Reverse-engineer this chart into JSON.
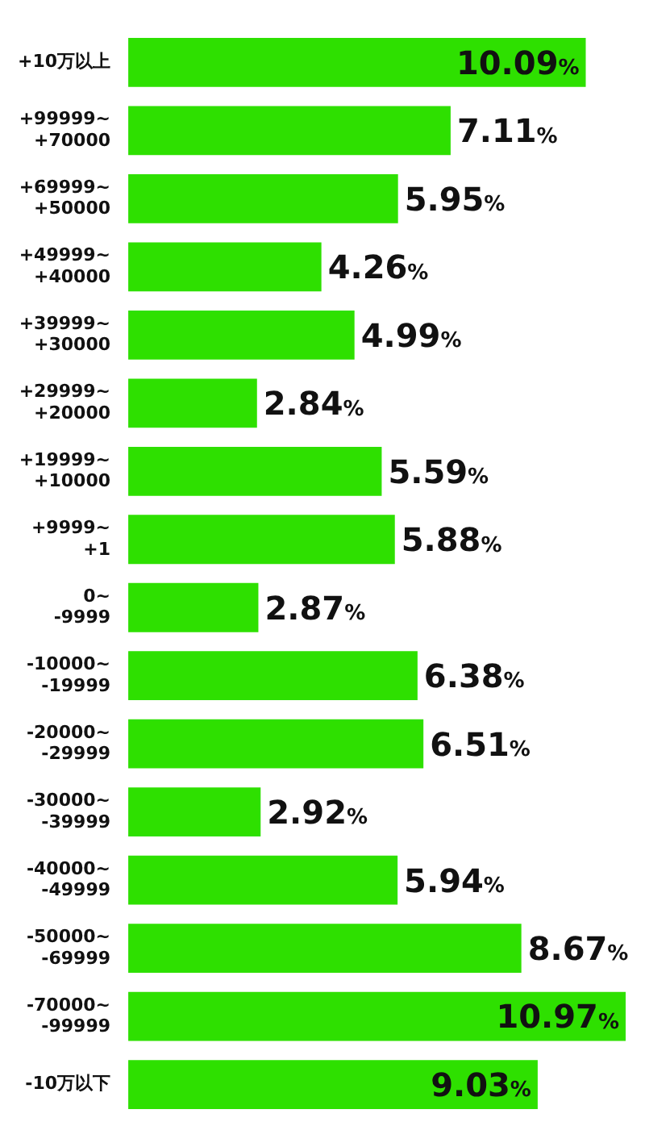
{
  "chart_data": {
    "type": "bar",
    "orientation": "horizontal",
    "color": "#2ee000",
    "categories": [
      "+10万以上",
      "+99999~+70000",
      "+69999~+50000",
      "+49999~+40000",
      "+39999~+30000",
      "+29999~+20000",
      "+19999~+10000",
      "+9999~+1",
      "0~-9999",
      "-10000~-19999",
      "-20000~-29999",
      "-30000~-39999",
      "-40000~-49999",
      "-50000~-69999",
      "-70000~-99999",
      "-10万以下"
    ],
    "values": [
      10.09,
      7.11,
      5.95,
      4.26,
      4.99,
      2.84,
      5.59,
      5.88,
      2.87,
      6.38,
      6.51,
      2.92,
      5.94,
      8.67,
      10.97,
      9.03
    ],
    "value_labels": [
      "10.09%",
      "7.11%",
      "5.95%",
      "4.26%",
      "4.99%",
      "2.84%",
      "5.59%",
      "5.88%",
      "2.87%",
      "6.38%",
      "6.51%",
      "2.92%",
      "5.94%",
      "8.67%",
      "10.97%",
      "9.03%"
    ],
    "grid": false,
    "legend": false
  }
}
